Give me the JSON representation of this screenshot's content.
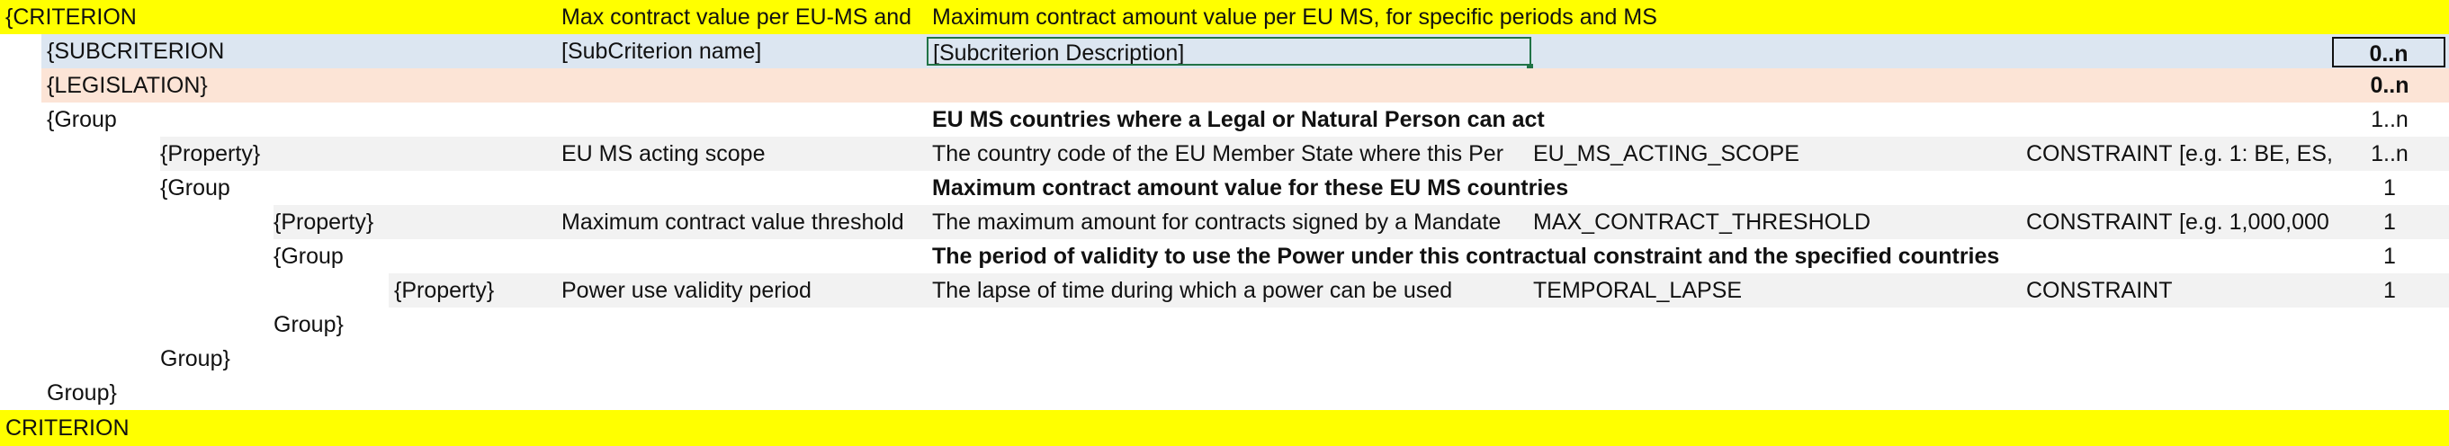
{
  "colors": {
    "criterion_yellow": "#ffff00",
    "subcriterion_blue": "#dce6f1",
    "legislation_peach": "#fce4d6",
    "property_grey": "#f2f2f2",
    "selection_green": "#217346"
  },
  "rows": [
    {
      "col_a": "{CRITERION",
      "name": "Max contract value per EU-MS and",
      "desc": "Maximum contract amount value per EU MS, for specific periods and MS"
    },
    {
      "col_b": "{SUBCRITERION",
      "name": "[SubCriterion name]",
      "desc": "[Subcriterion Description]",
      "card": "0..n"
    },
    {
      "col_b": "{LEGISLATION}",
      "card": "0..n"
    },
    {
      "col_b": "{Group",
      "desc": "EU MS countries where a Legal or Natural Person can act",
      "card": "1..n"
    },
    {
      "col_c": "{Property}",
      "name": "EU MS acting scope",
      "desc": "The country code of the EU Member State where this Per",
      "code": "EU_MS_ACTING_SCOPE",
      "type": "CONSTRAINT",
      "example": "[e.g. 1: BE, ES,",
      "card": "1..n"
    },
    {
      "col_c": "{Group",
      "desc": "Maximum contract amount value for these EU MS countries",
      "card": "1"
    },
    {
      "col_d": "{Property}",
      "name": "Maximum contract value threshold",
      "desc": "The maximum amount for contracts signed by a Mandate",
      "code": "MAX_CONTRACT_THRESHOLD",
      "type": "CONSTRAINT",
      "example": "[e.g. 1,000,000",
      "card": "1"
    },
    {
      "col_d": "{Group",
      "desc": "The period of validity to use the Power under this contractual constraint and the specified countries",
      "card": "1"
    },
    {
      "col_e": "{Property}",
      "name": "Power use validity period",
      "desc": "The lapse of time during which a power can be used",
      "code": "TEMPORAL_LAPSE",
      "type": "CONSTRAINT",
      "card": "1"
    },
    {
      "col_d": "Group}"
    },
    {
      "col_c": "Group}"
    },
    {
      "col_b": "Group}"
    },
    {
      "col_a": "CRITERION"
    }
  ]
}
